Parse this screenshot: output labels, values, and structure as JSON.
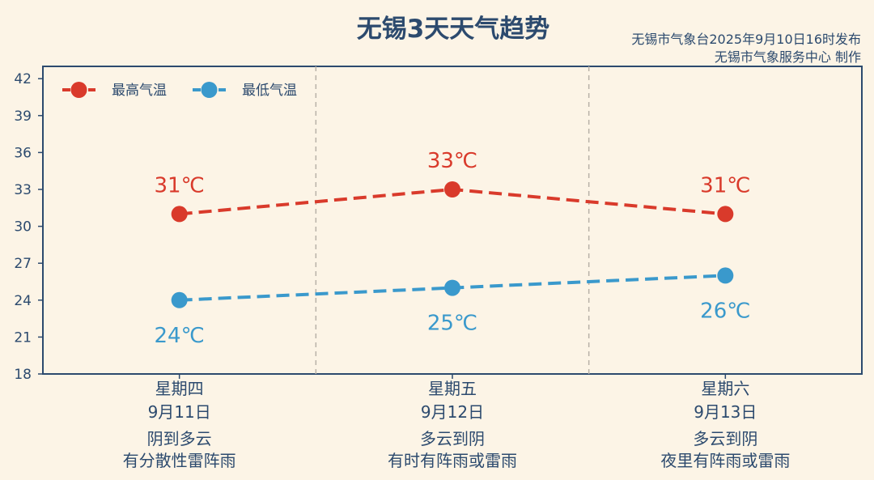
{
  "header": {
    "title": "无锡3天天气趋势",
    "issuer_line1": "无锡市气象台2025年9月10日16时发布",
    "issuer_line2": "无锡市气象服务中心 制作"
  },
  "chart_data": {
    "type": "line",
    "ylim": [
      18,
      43
    ],
    "yticks": [
      18,
      21,
      24,
      27,
      30,
      33,
      36,
      39,
      42
    ],
    "grid": false,
    "legend_placement": "top-left",
    "days": [
      {
        "weekday": "星期四",
        "date": "9月11日",
        "weather_line1": "阴到多云",
        "weather_line2": "有分散性雷阵雨"
      },
      {
        "weekday": "星期五",
        "date": "9月12日",
        "weather_line1": "多云到阴",
        "weather_line2": "有时有阵雨或雷雨"
      },
      {
        "weekday": "星期六",
        "date": "9月13日",
        "weather_line1": "多云到阴",
        "weather_line2": "夜里有阵雨或雷雨"
      }
    ],
    "series": [
      {
        "name": "最高气温",
        "color": "#d93a2b",
        "values": [
          31,
          33,
          31
        ],
        "labels": [
          "31℃",
          "33℃",
          "31℃"
        ],
        "label_position": "above"
      },
      {
        "name": "最低气温",
        "color": "#3a99cc",
        "values": [
          24,
          25,
          26
        ],
        "labels": [
          "24℃",
          "25℃",
          "26℃"
        ],
        "label_position": "below"
      }
    ]
  },
  "colors": {
    "background": "#fcf4e6",
    "axis": "#2c4a6e",
    "text": "#2c4a6e"
  }
}
